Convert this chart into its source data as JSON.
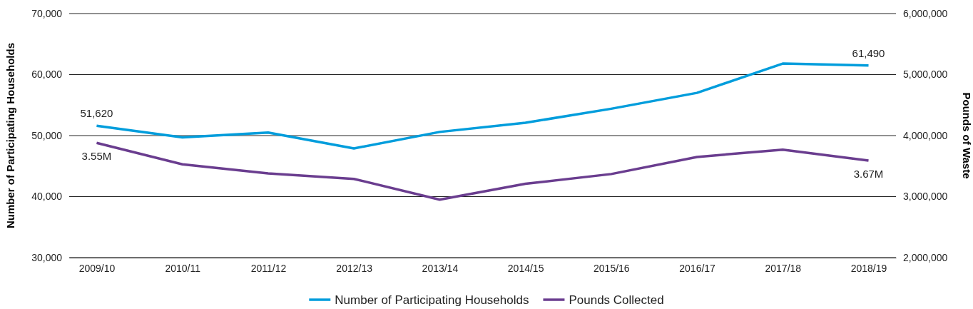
{
  "chart_data": {
    "type": "line",
    "ylabel": "Number of Participating Households",
    "y2label": "Pounds of Waste",
    "categories": [
      "2009/10",
      "2010/11",
      "2011/12",
      "2012/13",
      "2013/14",
      "2014/15",
      "2015/16",
      "2016/17",
      "2017/18",
      "2018/19"
    ],
    "series": [
      {
        "name": "Number of Participating Households",
        "color": "#009ddc",
        "values": [
          51620,
          49700,
          50500,
          47900,
          50600,
          52100,
          54400,
          57000,
          61800,
          61490
        ],
        "value_labels": [
          "51,620",
          null,
          null,
          null,
          null,
          null,
          null,
          null,
          null,
          "61,490"
        ]
      },
      {
        "name": "Pounds Collected",
        "color": "#6a3d8f",
        "axis": "y2",
        "values": [
          3880000,
          3530000,
          3380000,
          3290000,
          2950000,
          3210000,
          3370000,
          3650000,
          3770000,
          3590000
        ]
      }
    ],
    "annotations": [
      {
        "text": "3.55M",
        "x": "2009/10",
        "y": 48800
      },
      {
        "text": "3.67M",
        "x": "2018/19",
        "y": 45900
      }
    ],
    "ylim": [
      30000,
      70000
    ],
    "yticks": [
      {
        "value": 30000,
        "label": "30,000"
      },
      {
        "value": 40000,
        "label": "40,000"
      },
      {
        "value": 50000,
        "label": "50,000"
      },
      {
        "value": 60000,
        "label": "60,000"
      },
      {
        "value": 70000,
        "label": "70,000"
      }
    ],
    "y2lim": [
      2000000,
      6000000
    ],
    "y2ticks": [
      {
        "value": 2000000,
        "label": "2,000,000"
      },
      {
        "value": 3000000,
        "label": "3,000,000"
      },
      {
        "value": 4000000,
        "label": "4,000,000"
      },
      {
        "value": 5000000,
        "label": "5,000,000"
      },
      {
        "value": 6000000,
        "label": "6,000,000"
      }
    ],
    "grid": "y",
    "legend": "bottom",
    "marker": "none",
    "line_style": "solid"
  }
}
